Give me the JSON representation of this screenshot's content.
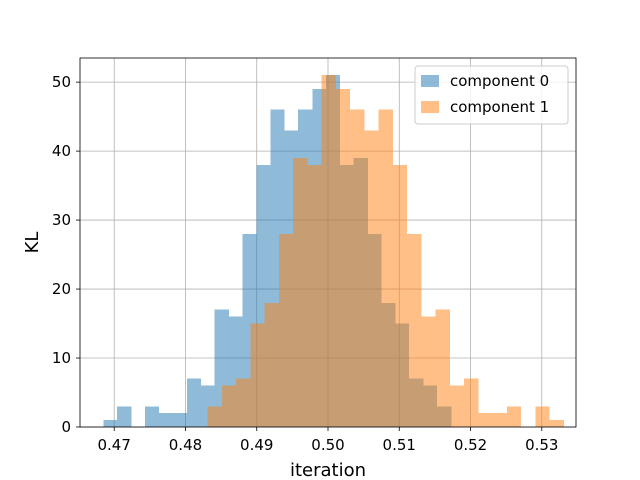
{
  "chart_data": {
    "type": "bar",
    "subtype": "overlapping-histogram",
    "title": "",
    "xlabel": "iteration",
    "ylabel": "KL",
    "xlim": [
      0.4652,
      0.5348
    ],
    "ylim": [
      0,
      53.5
    ],
    "grid": true,
    "legend_position": "top-right",
    "x_ticks": [
      0.47,
      0.48,
      0.49,
      0.5,
      0.51,
      0.52,
      0.53
    ],
    "x_tick_labels": [
      "0.47",
      "0.48",
      "0.49",
      "0.50",
      "0.51",
      "0.52",
      "0.53"
    ],
    "y_ticks": [
      0,
      10,
      20,
      30,
      40,
      50
    ],
    "y_tick_labels": [
      "0",
      "10",
      "20",
      "30",
      "40",
      "50"
    ],
    "series": [
      {
        "name": "component 0",
        "color": "#1f77b4",
        "alpha": 0.5,
        "bins": [
          [
            0.4685,
            0.4704,
            1
          ],
          [
            0.4704,
            0.4724,
            3
          ],
          [
            0.4724,
            0.4743,
            0
          ],
          [
            0.4743,
            0.4763,
            3
          ],
          [
            0.4763,
            0.4783,
            2
          ],
          [
            0.4783,
            0.4802,
            2
          ],
          [
            0.4802,
            0.4822,
            7
          ],
          [
            0.4822,
            0.4841,
            6
          ],
          [
            0.4841,
            0.4861,
            17
          ],
          [
            0.4861,
            0.488,
            16
          ],
          [
            0.488,
            0.49,
            28
          ],
          [
            0.49,
            0.4919,
            38
          ],
          [
            0.4919,
            0.4939,
            46
          ],
          [
            0.4939,
            0.4958,
            43
          ],
          [
            0.4958,
            0.4978,
            46
          ],
          [
            0.4978,
            0.4997,
            49
          ],
          [
            0.4997,
            0.5017,
            51
          ],
          [
            0.5017,
            0.5036,
            38
          ],
          [
            0.5036,
            0.5056,
            39
          ],
          [
            0.5056,
            0.5075,
            28
          ],
          [
            0.5075,
            0.5095,
            18
          ],
          [
            0.5095,
            0.5114,
            15
          ],
          [
            0.5114,
            0.5134,
            7
          ],
          [
            0.5134,
            0.5153,
            6
          ],
          [
            0.5153,
            0.5173,
            3
          ]
        ]
      },
      {
        "name": "component 1",
        "color": "#ff7f0e",
        "alpha": 0.5,
        "bins": [
          [
            0.4831,
            0.4851,
            3
          ],
          [
            0.4851,
            0.4871,
            6
          ],
          [
            0.4871,
            0.4891,
            7
          ],
          [
            0.4891,
            0.4911,
            15
          ],
          [
            0.4911,
            0.4931,
            18
          ],
          [
            0.4931,
            0.4951,
            28
          ],
          [
            0.4951,
            0.4971,
            39
          ],
          [
            0.4971,
            0.4991,
            38
          ],
          [
            0.4991,
            0.5011,
            51
          ],
          [
            0.5011,
            0.5031,
            49
          ],
          [
            0.5031,
            0.5051,
            46
          ],
          [
            0.5051,
            0.5071,
            43
          ],
          [
            0.5071,
            0.5091,
            46
          ],
          [
            0.5091,
            0.5111,
            38
          ],
          [
            0.5111,
            0.5131,
            28
          ],
          [
            0.5131,
            0.5151,
            16
          ],
          [
            0.5151,
            0.5171,
            17
          ],
          [
            0.5171,
            0.5191,
            6
          ],
          [
            0.5191,
            0.5211,
            7
          ],
          [
            0.5211,
            0.5231,
            2
          ],
          [
            0.5231,
            0.5251,
            2
          ],
          [
            0.5251,
            0.5271,
            3
          ],
          [
            0.5271,
            0.5291,
            0
          ],
          [
            0.5291,
            0.5311,
            3
          ],
          [
            0.5311,
            0.5331,
            1
          ]
        ]
      }
    ]
  }
}
